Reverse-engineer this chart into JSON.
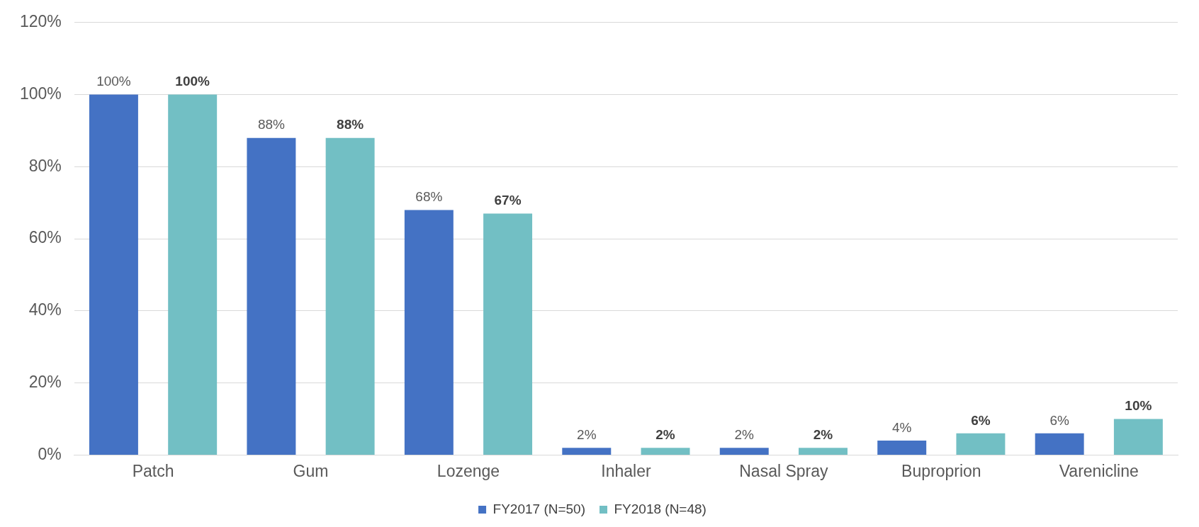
{
  "chart_data": {
    "type": "bar",
    "categories": [
      "Patch",
      "Gum",
      "Lozenge",
      "Inhaler",
      "Nasal Spray",
      "Buproprion",
      "Varenicline"
    ],
    "series": [
      {
        "name": "FY2017 (N=50)",
        "color": "#4472c4",
        "values": [
          100,
          88,
          68,
          2,
          2,
          4,
          6
        ]
      },
      {
        "name": "FY2018 (N=48)",
        "color": "#72bfc4",
        "values": [
          100,
          88,
          67,
          2,
          2,
          6,
          10
        ]
      }
    ],
    "ylim": [
      0,
      120
    ],
    "yticks": [
      {
        "value": 0,
        "label": "0%"
      },
      {
        "value": 20,
        "label": "20%"
      },
      {
        "value": 40,
        "label": "40%"
      },
      {
        "value": 60,
        "label": "60%"
      },
      {
        "value": 80,
        "label": "80%"
      },
      {
        "value": 100,
        "label": "100%"
      },
      {
        "value": 120,
        "label": "120%"
      }
    ],
    "value_labels": [
      [
        "100%",
        "88%",
        "68%",
        "2%",
        "2%",
        "4%",
        "6%"
      ],
      [
        "100%",
        "88%",
        "67%",
        "2%",
        "2%",
        "6%",
        "10%"
      ]
    ],
    "grid": "y",
    "legend": "bottom"
  }
}
